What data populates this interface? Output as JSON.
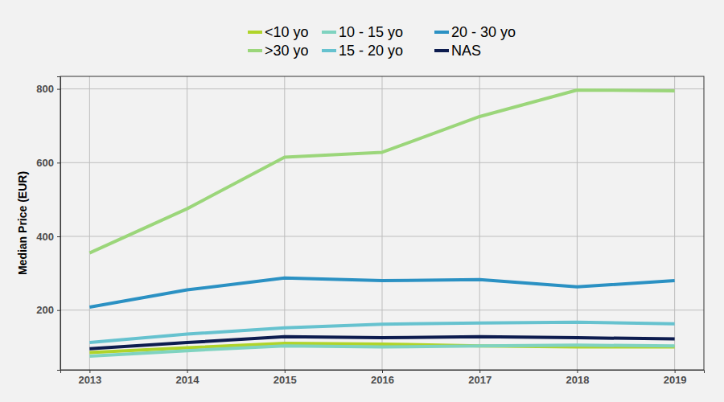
{
  "chart_data": {
    "type": "line",
    "y_label": "Median Price (EUR)",
    "x": [
      2013,
      2014,
      2015,
      2016,
      2017,
      2018,
      2019
    ],
    "xlim": [
      2012.7,
      2019.3
    ],
    "xticks": [
      2013,
      2014,
      2015,
      2016,
      2017,
      2018,
      2019
    ],
    "ylim": [
      38,
      834
    ],
    "yticks": [
      200,
      400,
      600,
      800
    ],
    "grid": true,
    "legend": "top",
    "series": [
      {
        "name": "<10 yo",
        "color": "#b0d42a",
        "values": [
          85,
          98,
          110,
          108,
          103,
          100,
          100
        ]
      },
      {
        "name": "10 - 15 yo",
        "color": "#7fd3c0",
        "values": [
          75,
          90,
          103,
          100,
          103,
          105,
          103
        ]
      },
      {
        "name": "20 - 30 yo",
        "color": "#2b91c3",
        "values": [
          208,
          255,
          287,
          280,
          283,
          263,
          280
        ]
      },
      {
        "name": ">30 yo",
        "color": "#9bd67a",
        "values": [
          355,
          475,
          615,
          628,
          725,
          797,
          795
        ]
      },
      {
        "name": "15 - 20 yo",
        "color": "#66c2cf",
        "values": [
          112,
          135,
          152,
          162,
          165,
          167,
          163
        ]
      },
      {
        "name": "NAS",
        "color": "#0d1c4f",
        "values": [
          95,
          112,
          128,
          125,
          128,
          125,
          122
        ]
      }
    ]
  }
}
